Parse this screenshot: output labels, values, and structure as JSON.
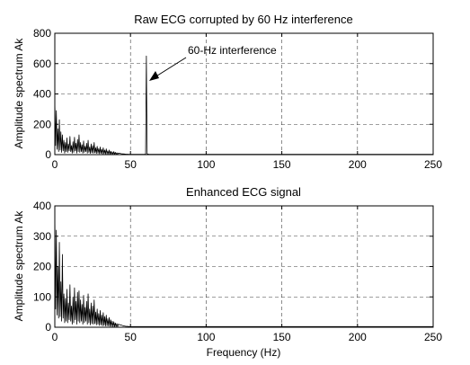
{
  "chart_data": [
    {
      "type": "line",
      "title": "Raw ECG corrupted by 60 Hz interference",
      "xlabel": "",
      "ylabel": "Amplitude spectrum Ak",
      "xlim": [
        0,
        250
      ],
      "ylim": [
        0,
        800
      ],
      "xticks": [
        0,
        50,
        100,
        150,
        200,
        250
      ],
      "yticks": [
        0,
        200,
        400,
        600,
        800
      ],
      "grid": true,
      "annotation": {
        "text": "60-Hz interference",
        "points_to": {
          "x": 60,
          "y": 480
        }
      },
      "series": [
        {
          "x": [
            0,
            0.5,
            1,
            1.5,
            2,
            2.5,
            3,
            3.5,
            4,
            4.5,
            5,
            5.5,
            6,
            6.5,
            7,
            7.5,
            8,
            8.5,
            9,
            9.5,
            10,
            10.5,
            11,
            11.5,
            12,
            12.5,
            13,
            13.5,
            14,
            14.5,
            15,
            15.5,
            16,
            16.5,
            17,
            17.5,
            18,
            18.5,
            19,
            19.5,
            20,
            20.5,
            21,
            21.5,
            22,
            22.5,
            23,
            23.5,
            24,
            24.5,
            25,
            25.5,
            26,
            26.5,
            27,
            27.5,
            28,
            28.5,
            29,
            29.5,
            30,
            30.5,
            31,
            31.5,
            32,
            32.5,
            33,
            33.5,
            34,
            34.5,
            35,
            35.5,
            36,
            36.5,
            37,
            37.5,
            38,
            38.5,
            39,
            39.5,
            40,
            40.5,
            41,
            41.5,
            42,
            43,
            44,
            45,
            46,
            47,
            48,
            49,
            50,
            51,
            52,
            53,
            54,
            55,
            56,
            57,
            58,
            59,
            59.5,
            60,
            60.5,
            61,
            62,
            65,
            70,
            80,
            90,
            100,
            120,
            150,
            180,
            200,
            220,
            250
          ],
          "y": [
            360,
            60,
            290,
            35,
            170,
            20,
            230,
            30,
            150,
            15,
            130,
            25,
            95,
            10,
            80,
            20,
            110,
            15,
            70,
            25,
            120,
            20,
            60,
            10,
            85,
            15,
            115,
            25,
            75,
            10,
            100,
            20,
            130,
            15,
            80,
            20,
            65,
            10,
            90,
            15,
            55,
            20,
            75,
            10,
            95,
            15,
            50,
            8,
            70,
            12,
            60,
            10,
            80,
            12,
            45,
            8,
            55,
            10,
            40,
            6,
            50,
            8,
            35,
            5,
            45,
            6,
            30,
            4,
            38,
            5,
            25,
            4,
            30,
            3,
            22,
            3,
            18,
            2,
            20,
            2,
            15,
            2,
            12,
            2,
            10,
            8,
            6,
            5,
            4,
            3,
            3,
            2,
            2,
            2,
            2,
            2,
            2,
            2,
            2,
            2,
            2,
            2,
            2,
            5,
            650,
            5,
            3,
            2,
            2,
            2,
            2,
            2,
            2,
            2,
            2,
            2,
            2,
            2
          ]
        }
      ]
    },
    {
      "type": "line",
      "title": "Enhanced ECG signal",
      "xlabel": "Frequency (Hz)",
      "ylabel": "Amplitude spectrum Ak",
      "xlim": [
        0,
        250
      ],
      "ylim": [
        0,
        400
      ],
      "xticks": [
        0,
        50,
        100,
        150,
        200,
        250
      ],
      "yticks": [
        0,
        100,
        200,
        300,
        400
      ],
      "grid": true,
      "series": [
        {
          "x": [
            0,
            0.5,
            1,
            1.5,
            2,
            2.5,
            3,
            3.5,
            4,
            4.5,
            5,
            5.5,
            6,
            6.5,
            7,
            7.5,
            8,
            8.5,
            9,
            9.5,
            10,
            10.5,
            11,
            11.5,
            12,
            12.5,
            13,
            13.5,
            14,
            14.5,
            15,
            15.5,
            16,
            16.5,
            17,
            17.5,
            18,
            18.5,
            19,
            19.5,
            20,
            20.5,
            21,
            21.5,
            22,
            22.5,
            23,
            23.5,
            24,
            24.5,
            25,
            25.5,
            26,
            26.5,
            27,
            27.5,
            28,
            28.5,
            29,
            29.5,
            30,
            30.5,
            31,
            31.5,
            32,
            32.5,
            33,
            33.5,
            34,
            34.5,
            35,
            35.5,
            36,
            36.5,
            37,
            37.5,
            38,
            38.5,
            39,
            39.5,
            40,
            40.5,
            41,
            41.5,
            42,
            43,
            44,
            45,
            46,
            47,
            48,
            49,
            50,
            52,
            55,
            60,
            70,
            80,
            100,
            120,
            150,
            180,
            200,
            220,
            250
          ],
          "y": [
            380,
            60,
            320,
            40,
            200,
            30,
            280,
            35,
            150,
            20,
            240,
            30,
            110,
            15,
            95,
            20,
            125,
            15,
            80,
            25,
            140,
            20,
            70,
            10,
            100,
            15,
            130,
            25,
            85,
            10,
            115,
            20,
            120,
            15,
            90,
            20,
            75,
            10,
            105,
            15,
            65,
            20,
            85,
            10,
            110,
            15,
            60,
            8,
            80,
            12,
            70,
            10,
            90,
            12,
            50,
            8,
            60,
            10,
            45,
            6,
            55,
            8,
            40,
            5,
            48,
            6,
            35,
            4,
            40,
            5,
            28,
            4,
            32,
            3,
            24,
            3,
            20,
            2,
            18,
            2,
            14,
            2,
            12,
            2,
            10,
            8,
            7,
            5,
            4,
            3,
            3,
            2,
            2,
            2,
            2,
            2,
            2,
            2,
            2,
            2,
            2,
            2,
            2,
            2,
            2
          ]
        }
      ]
    }
  ]
}
